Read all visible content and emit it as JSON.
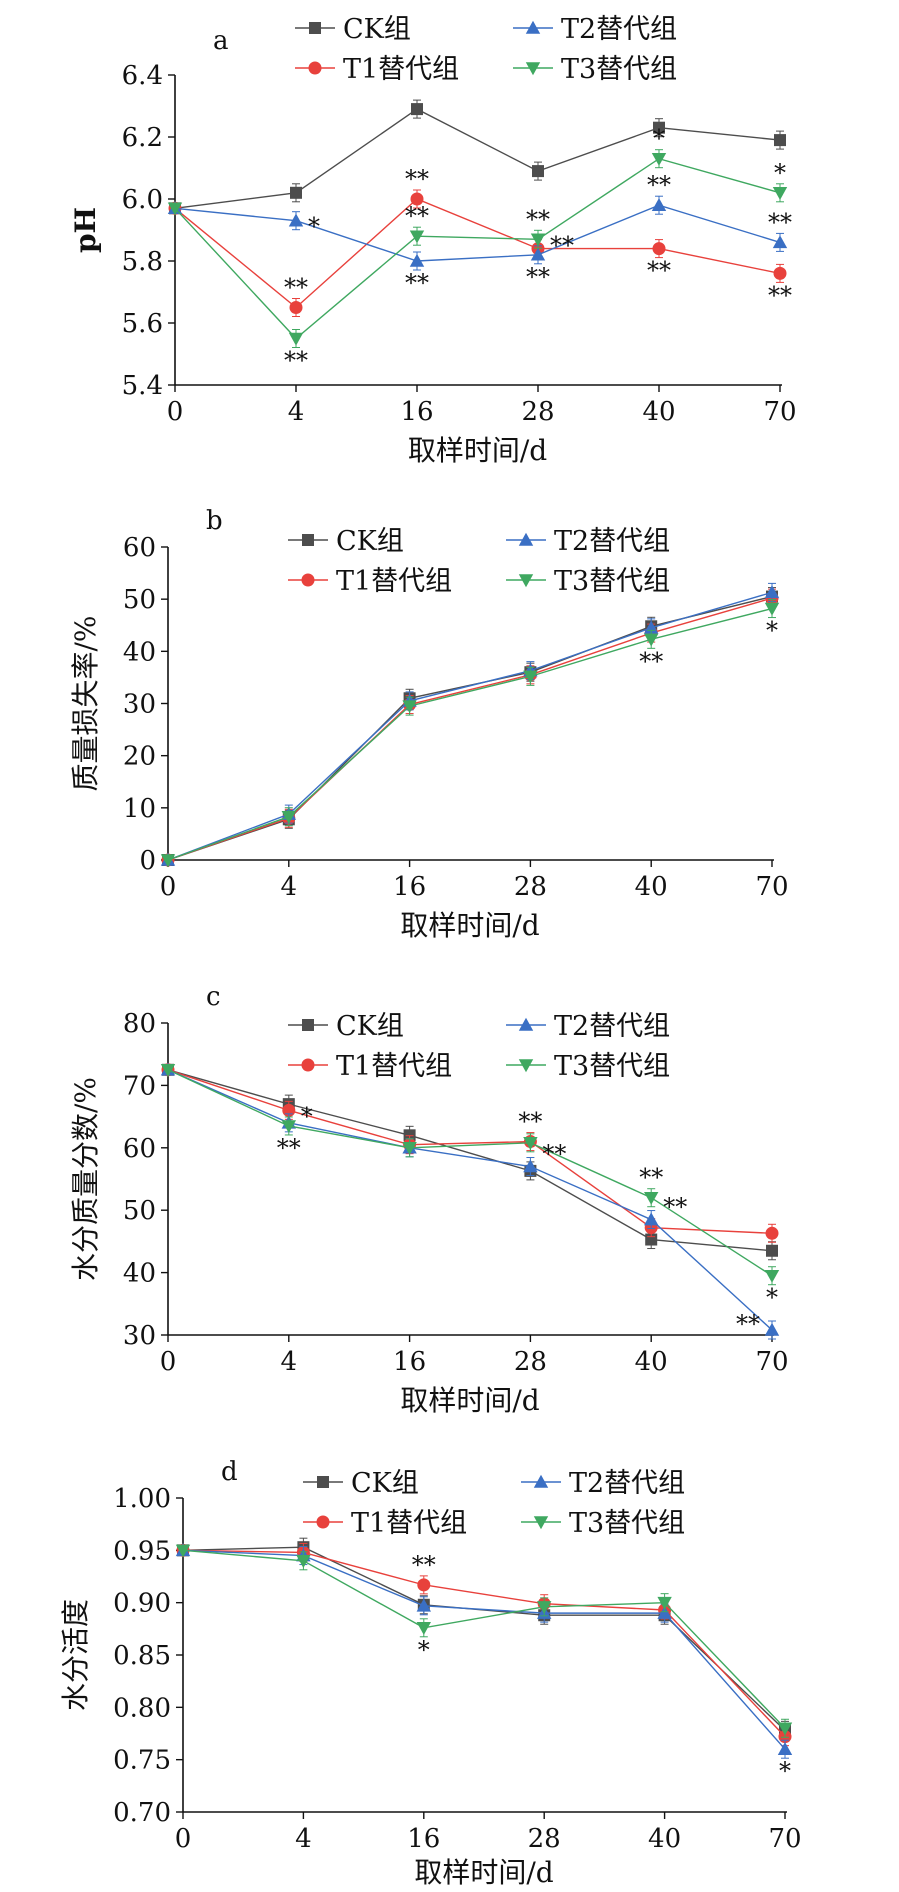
{
  "colors": {
    "CK": "#4d4d4d",
    "T1": "#e8413c",
    "T2": "#3a6fc4",
    "T3": "#3fa860"
  },
  "chart_data": [
    {
      "type": "line",
      "panel_label": "a",
      "categories": [
        "0",
        "4",
        "16",
        "28",
        "40",
        "70"
      ],
      "xlabel": "取样时间/d",
      "ylabel": "pH",
      "ylim": [
        5.4,
        6.4
      ],
      "yticks": [
        "5.4",
        "5.6",
        "5.8",
        "6.0",
        "6.2",
        "6.4"
      ],
      "legend_placement": "top",
      "series": [
        {
          "key": "CK",
          "name": "CK组",
          "marker": "square",
          "values": [
            5.97,
            6.02,
            6.29,
            6.09,
            6.23,
            6.19
          ]
        },
        {
          "key": "T1",
          "name": "T1替代组",
          "marker": "circle",
          "values": [
            5.97,
            5.65,
            6.0,
            5.84,
            5.84,
            5.76
          ]
        },
        {
          "key": "T2",
          "name": "T2替代组",
          "marker": "triangle-up",
          "values": [
            5.97,
            5.93,
            5.8,
            5.82,
            5.98,
            5.86
          ]
        },
        {
          "key": "T3",
          "name": "T3替代组",
          "marker": "triangle-down",
          "values": [
            5.97,
            5.55,
            5.88,
            5.87,
            6.13,
            6.02
          ]
        }
      ],
      "annotations": [
        {
          "x": 1,
          "y": 5.93,
          "text": "*",
          "pos": "right"
        },
        {
          "x": 1,
          "y": 5.65,
          "text": "**",
          "pos": "above"
        },
        {
          "x": 1,
          "y": 5.55,
          "text": "**",
          "pos": "below"
        },
        {
          "x": 2,
          "y": 6.0,
          "text": "**",
          "pos": "above"
        },
        {
          "x": 2,
          "y": 5.88,
          "text": "**",
          "pos": "above"
        },
        {
          "x": 2,
          "y": 5.8,
          "text": "**",
          "pos": "below"
        },
        {
          "x": 3,
          "y": 5.87,
          "text": "**",
          "pos": "above"
        },
        {
          "x": 3,
          "y": 5.87,
          "text": "**",
          "pos": "right"
        },
        {
          "x": 3,
          "y": 5.82,
          "text": "**",
          "pos": "below"
        },
        {
          "x": 4,
          "y": 6.13,
          "text": "*",
          "pos": "above"
        },
        {
          "x": 4,
          "y": 5.98,
          "text": "**",
          "pos": "above"
        },
        {
          "x": 4,
          "y": 5.84,
          "text": "**",
          "pos": "below"
        },
        {
          "x": 5,
          "y": 6.02,
          "text": "*",
          "pos": "above"
        },
        {
          "x": 5,
          "y": 5.86,
          "text": "**",
          "pos": "above"
        },
        {
          "x": 5,
          "y": 5.76,
          "text": "**",
          "pos": "below"
        }
      ]
    },
    {
      "type": "line",
      "panel_label": "b",
      "categories": [
        "0",
        "4",
        "16",
        "28",
        "40",
        "70"
      ],
      "xlabel": "取样时间/d",
      "ylabel": "质量损失率/%",
      "ylim": [
        0,
        60
      ],
      "yticks": [
        "0",
        "10",
        "20",
        "30",
        "40",
        "50",
        "60"
      ],
      "legend_placement": "top",
      "series": [
        {
          "key": "CK",
          "name": "CK组",
          "marker": "square",
          "values": [
            0,
            7.8,
            31.0,
            36.0,
            44.8,
            50.5
          ]
        },
        {
          "key": "T1",
          "name": "T1替代组",
          "marker": "circle",
          "values": [
            0,
            8.0,
            29.8,
            35.5,
            43.5,
            50.2
          ]
        },
        {
          "key": "T2",
          "name": "T2替代组",
          "marker": "triangle-up",
          "values": [
            0,
            8.8,
            30.5,
            36.3,
            44.5,
            51.3
          ]
        },
        {
          "key": "T3",
          "name": "T3替代组",
          "marker": "triangle-down",
          "values": [
            0,
            8.3,
            29.5,
            35.2,
            42.3,
            48.2
          ]
        }
      ],
      "annotations": [
        {
          "x": 4,
          "y": 42.3,
          "text": "**",
          "pos": "below"
        },
        {
          "x": 5,
          "y": 48.2,
          "text": "*",
          "pos": "below"
        }
      ]
    },
    {
      "type": "line",
      "panel_label": "c",
      "categories": [
        "0",
        "4",
        "16",
        "28",
        "40",
        "70"
      ],
      "xlabel": "取样时间/d",
      "ylabel": "水分质量分数/%",
      "ylim": [
        30,
        80
      ],
      "yticks": [
        "30",
        "40",
        "50",
        "60",
        "70",
        "80"
      ],
      "legend_placement": "top",
      "series": [
        {
          "key": "CK",
          "name": "CK组",
          "marker": "square",
          "values": [
            72.5,
            67.0,
            62.0,
            56.3,
            45.3,
            43.5
          ]
        },
        {
          "key": "T1",
          "name": "T1替代组",
          "marker": "circle",
          "values": [
            72.5,
            66.0,
            60.5,
            61.0,
            47.2,
            46.3
          ]
        },
        {
          "key": "T2",
          "name": "T2替代组",
          "marker": "triangle-up",
          "values": [
            72.5,
            64.0,
            60.0,
            57.0,
            48.5,
            30.8
          ]
        },
        {
          "key": "T3",
          "name": "T3替代组",
          "marker": "triangle-down",
          "values": [
            72.5,
            63.5,
            60.0,
            60.8,
            52.0,
            39.5
          ]
        }
      ],
      "annotations": [
        {
          "x": 1,
          "y": 66.0,
          "text": "*",
          "pos": "right"
        },
        {
          "x": 1,
          "y": 63.5,
          "text": "**",
          "pos": "below"
        },
        {
          "x": 3,
          "y": 61.0,
          "text": "**",
          "pos": "above"
        },
        {
          "x": 3,
          "y": 60.0,
          "text": "**",
          "pos": "right"
        },
        {
          "x": 4,
          "y": 52.0,
          "text": "**",
          "pos": "above"
        },
        {
          "x": 4,
          "y": 51.5,
          "text": "**",
          "pos": "right"
        },
        {
          "x": 5,
          "y": 39.5,
          "text": "*",
          "pos": "below"
        },
        {
          "x": 5,
          "y": 30.8,
          "text": "**",
          "pos": "left"
        }
      ]
    },
    {
      "type": "line",
      "panel_label": "d",
      "categories": [
        "0",
        "4",
        "16",
        "28",
        "40",
        "70"
      ],
      "xlabel": "取样时间/d",
      "ylabel": "水分活度",
      "ylim": [
        0.7,
        1.0
      ],
      "yticks": [
        "0.70",
        "0.75",
        "0.80",
        "0.85",
        "0.90",
        "0.95",
        "1.00"
      ],
      "legend_placement": "top",
      "series": [
        {
          "key": "CK",
          "name": "CK组",
          "marker": "square",
          "values": [
            0.95,
            0.953,
            0.898,
            0.888,
            0.888,
            0.778
          ]
        },
        {
          "key": "T1",
          "name": "T1替代组",
          "marker": "circle",
          "values": [
            0.95,
            0.948,
            0.917,
            0.899,
            0.893,
            0.772
          ]
        },
        {
          "key": "T2",
          "name": "T2替代组",
          "marker": "triangle-up",
          "values": [
            0.95,
            0.945,
            0.897,
            0.89,
            0.89,
            0.76
          ]
        },
        {
          "key": "T3",
          "name": "T3替代组",
          "marker": "triangle-down",
          "values": [
            0.95,
            0.94,
            0.876,
            0.896,
            0.9,
            0.78
          ]
        }
      ],
      "annotations": [
        {
          "x": 2,
          "y": 0.917,
          "text": "**",
          "pos": "above"
        },
        {
          "x": 2,
          "y": 0.876,
          "text": "*",
          "pos": "below"
        },
        {
          "x": 5,
          "y": 0.76,
          "text": "*",
          "pos": "below"
        }
      ]
    }
  ]
}
